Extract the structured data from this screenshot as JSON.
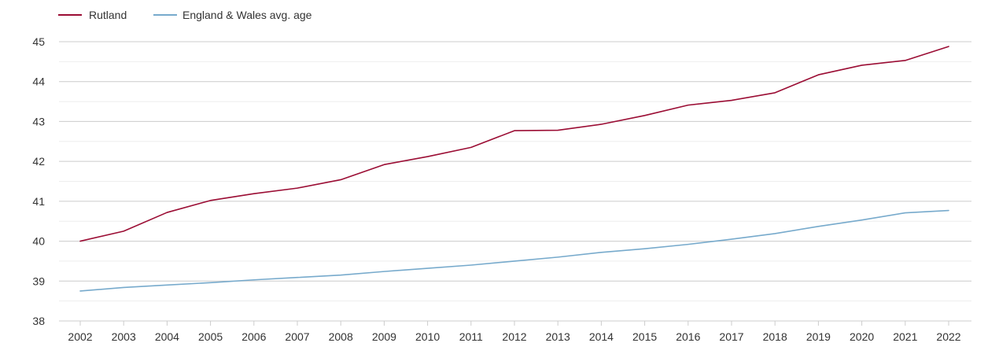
{
  "chart_data": {
    "type": "line",
    "title": "",
    "xlabel": "",
    "ylabel": "",
    "categories": [
      "2002",
      "2003",
      "2004",
      "2005",
      "2006",
      "2007",
      "2008",
      "2009",
      "2010",
      "2011",
      "2012",
      "2013",
      "2014",
      "2015",
      "2016",
      "2017",
      "2018",
      "2019",
      "2020",
      "2021",
      "2022"
    ],
    "ylim": [
      38,
      45
    ],
    "yticks": [
      "38",
      "39",
      "40",
      "41",
      "42",
      "43",
      "44",
      "45"
    ],
    "grid": true,
    "legend_position": "top-left",
    "series": [
      {
        "name": "Rutland",
        "color": "#9b0d34",
        "values": [
          40.0,
          40.25,
          40.72,
          41.02,
          41.19,
          41.33,
          41.54,
          41.92,
          42.12,
          42.35,
          42.77,
          42.78,
          42.93,
          43.15,
          43.41,
          43.53,
          43.72,
          44.17,
          44.41,
          44.53,
          44.88
        ]
      },
      {
        "name": "England & Wales avg. age",
        "color": "#77aacc",
        "values": [
          38.75,
          38.84,
          38.9,
          38.96,
          39.03,
          39.09,
          39.15,
          39.24,
          39.32,
          39.4,
          39.5,
          39.6,
          39.72,
          39.81,
          39.92,
          40.05,
          40.19,
          40.37,
          40.53,
          40.71,
          40.77
        ]
      }
    ]
  }
}
